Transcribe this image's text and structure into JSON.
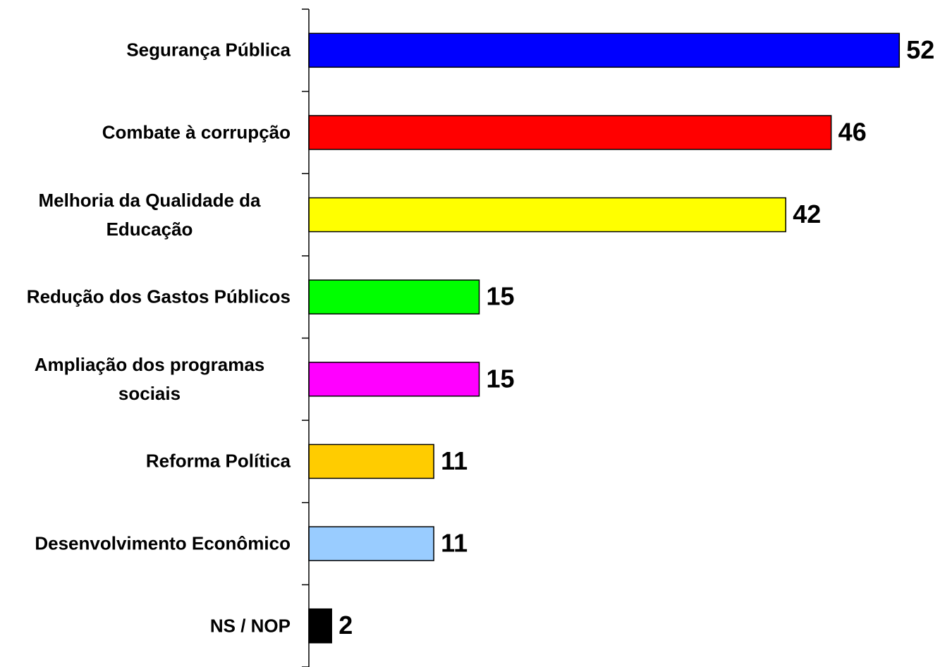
{
  "chart_data": {
    "type": "hbar",
    "categories": [
      "Segurança Pública",
      "Combate à corrupção",
      "Melhoria da Qualidade da Educação",
      "Redução dos Gastos Públicos",
      "Ampliação dos programas sociais",
      "Reforma Política",
      "Desenvolvimento Econômico",
      "NS / NOP"
    ],
    "values": [
      52,
      46,
      42,
      15,
      15,
      11,
      11,
      2
    ],
    "colors": [
      "#0000ff",
      "#ff0000",
      "#ffff00",
      "#00ff00",
      "#ff00ff",
      "#ffcc00",
      "#99ccff",
      "#000000"
    ],
    "xlim": [
      0,
      55
    ]
  }
}
